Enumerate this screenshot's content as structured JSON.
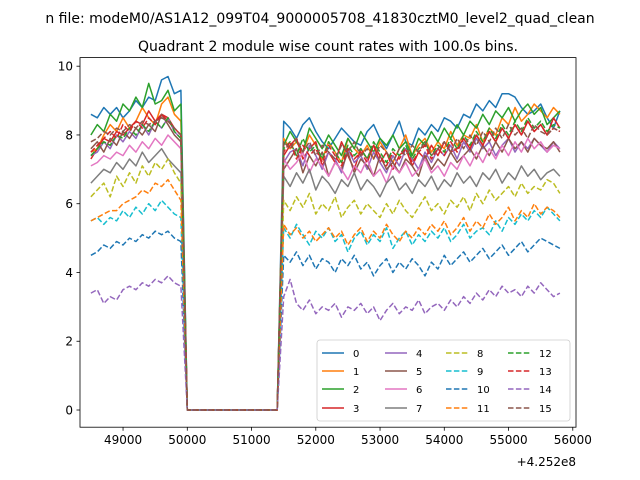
{
  "suptitle": "n file: modeM0/AS1A12_099T04_9000005708_41830cztM0_level2_quad_clean",
  "chart_data": {
    "type": "line",
    "title": "Quadrant 2 module wise count rates with 100.0s bins.",
    "xlabel": "",
    "ylabel": "",
    "offset_text": "+4.252e8",
    "xlim": [
      48330,
      56050
    ],
    "ylim": [
      -0.5,
      10.25
    ],
    "xticks": [
      49000,
      50000,
      51000,
      52000,
      53000,
      54000,
      55000,
      56000
    ],
    "xtick_labels": [
      "49000",
      "50000",
      "51000",
      "52000",
      "53000",
      "54000",
      "55000",
      "56000"
    ],
    "yticks": [
      0,
      2,
      4,
      6,
      8,
      10
    ],
    "ytick_labels": [
      "0",
      "2",
      "4",
      "6",
      "8",
      "10"
    ],
    "grid": false,
    "legend_placement": "lower-right",
    "legend_columns": 4,
    "segments": [
      {
        "start": 48500,
        "end": 49900,
        "step": 100
      },
      {
        "start": 50000,
        "end": 51400,
        "step": 100
      },
      {
        "start": 51500,
        "end": 55800,
        "step": 100
      }
    ],
    "series": [
      {
        "name": "0",
        "color": "#1f77b4",
        "dash": "solid",
        "level": 8.1,
        "seg1": [
          8.6,
          8.5,
          8.8,
          8.6,
          8.8,
          8.5,
          8.7,
          9.0,
          8.8,
          9.1,
          9.0,
          9.6,
          9.7,
          9.2,
          9.3
        ],
        "seg2": [
          8.4,
          8.2,
          7.9,
          8.3,
          8.5,
          8.1,
          7.8,
          7.6,
          7.9,
          8.2,
          8.0,
          7.8,
          7.7,
          8.1,
          8.3,
          7.9,
          7.6,
          8.0,
          8.4,
          7.8,
          7.7,
          8.2,
          8.0,
          8.3,
          8.1,
          8.5,
          8.4,
          8.2,
          8.6,
          8.5,
          8.9,
          8.7,
          9.0,
          8.8,
          9.2,
          9.2,
          9.1,
          8.8,
          8.6,
          8.7,
          8.9,
          8.5,
          8.2,
          8.7
        ]
      },
      {
        "name": "1",
        "color": "#ff7f0e",
        "dash": "solid",
        "level": 7.7,
        "seg1": [
          7.5,
          7.6,
          8.0,
          8.3,
          8.1,
          8.5,
          8.2,
          8.4,
          8.8,
          8.5,
          8.3,
          8.9,
          9.1,
          8.6,
          8.4
        ],
        "seg2": [
          7.9,
          7.6,
          7.8,
          7.5,
          8.0,
          7.7,
          7.3,
          7.8,
          7.5,
          7.2,
          7.9,
          7.6,
          7.4,
          7.7,
          7.3,
          7.8,
          7.5,
          7.2,
          7.6,
          8.0,
          7.4,
          7.7,
          7.9,
          7.5,
          7.8,
          7.6,
          8.1,
          7.7,
          8.0,
          7.9,
          8.3,
          7.8,
          8.2,
          8.0,
          8.5,
          8.3,
          8.8,
          8.4,
          8.6,
          8.9,
          8.7,
          8.5,
          8.8,
          8.6
        ]
      },
      {
        "name": "2",
        "color": "#2ca02c",
        "dash": "solid",
        "level": 7.8,
        "seg1": [
          8.0,
          8.3,
          8.1,
          8.6,
          8.4,
          8.9,
          8.7,
          9.1,
          8.8,
          9.5,
          8.9,
          9.0,
          9.3,
          8.7,
          8.9
        ],
        "seg2": [
          7.7,
          8.1,
          7.8,
          7.5,
          8.2,
          7.9,
          7.6,
          8.0,
          7.7,
          7.4,
          7.9,
          7.6,
          8.1,
          7.8,
          7.5,
          7.9,
          7.7,
          8.0,
          7.6,
          7.8,
          7.4,
          7.9,
          7.7,
          8.1,
          7.8,
          8.2,
          7.9,
          8.3,
          8.0,
          8.4,
          8.2,
          8.6,
          8.3,
          8.7,
          8.5,
          8.8,
          8.4,
          8.7,
          8.9,
          8.6,
          8.8,
          8.3,
          8.5,
          8.7
        ]
      },
      {
        "name": "3",
        "color": "#d62728",
        "dash": "solid",
        "level": 7.5,
        "seg1": [
          7.3,
          7.6,
          7.9,
          7.8,
          8.1,
          8.0,
          8.2,
          8.4,
          8.3,
          8.7,
          8.4,
          8.6,
          8.5,
          8.2,
          8.0
        ],
        "seg2": [
          7.4,
          7.7,
          7.9,
          7.3,
          7.6,
          7.8,
          7.1,
          7.5,
          7.2,
          7.8,
          7.4,
          7.0,
          7.6,
          7.3,
          7.7,
          7.2,
          7.5,
          7.0,
          7.4,
          7.6,
          7.1,
          7.5,
          7.3,
          7.7,
          7.4,
          7.8,
          7.5,
          7.6,
          7.9,
          7.6,
          8.0,
          7.7,
          8.1,
          7.8,
          8.2,
          7.9,
          8.3,
          8.0,
          8.4,
          8.1,
          8.3,
          8.0,
          8.5,
          8.2
        ]
      },
      {
        "name": "4",
        "color": "#9467bd",
        "dash": "solid",
        "level": 7.3,
        "seg1": [
          7.4,
          7.5,
          7.8,
          7.6,
          8.0,
          7.8,
          8.1,
          7.9,
          8.3,
          8.0,
          8.4,
          8.2,
          8.5,
          8.1,
          7.9
        ],
        "seg2": [
          7.2,
          7.5,
          7.6,
          7.1,
          7.7,
          7.4,
          7.0,
          7.5,
          7.3,
          6.9,
          7.6,
          7.2,
          7.4,
          7.0,
          7.5,
          7.2,
          6.9,
          7.4,
          7.1,
          7.6,
          7.3,
          7.0,
          7.5,
          7.2,
          7.6,
          7.4,
          7.7,
          7.3,
          7.8,
          7.5,
          7.9,
          7.6,
          7.8,
          7.4,
          7.7,
          7.9,
          7.5,
          7.8,
          7.6,
          7.9,
          7.7,
          7.5,
          7.8,
          7.6
        ]
      },
      {
        "name": "5",
        "color": "#8c564b",
        "dash": "solid",
        "level": 7.1,
        "seg1": [
          7.6,
          7.8,
          7.5,
          7.9,
          7.7,
          8.1,
          7.9,
          8.2,
          8.0,
          8.3,
          8.1,
          8.6,
          8.3,
          8.0,
          7.8
        ],
        "seg2": [
          7.0,
          7.3,
          7.6,
          6.9,
          7.4,
          7.1,
          7.5,
          6.8,
          7.2,
          7.0,
          7.5,
          6.9,
          7.3,
          7.1,
          6.8,
          7.4,
          7.0,
          7.2,
          6.9,
          7.3,
          7.1,
          6.8,
          7.4,
          7.0,
          7.3,
          7.1,
          7.5,
          7.2,
          7.4,
          7.6,
          7.3,
          7.7,
          7.4,
          7.8,
          7.5,
          7.9,
          7.6,
          7.8,
          7.5,
          7.9,
          7.7,
          7.6,
          7.8,
          7.5
        ]
      },
      {
        "name": "6",
        "color": "#e377c2",
        "dash": "solid",
        "level": 7.2,
        "seg1": [
          7.1,
          7.2,
          7.4,
          7.3,
          7.5,
          7.4,
          7.7,
          7.5,
          7.8,
          7.6,
          7.9,
          7.7,
          8.0,
          7.8,
          7.6
        ],
        "seg2": [
          7.3,
          7.0,
          7.2,
          7.5,
          6.9,
          7.3,
          7.1,
          6.8,
          7.2,
          7.0,
          6.7,
          7.1,
          6.9,
          7.3,
          6.8,
          7.0,
          6.6,
          7.1,
          6.9,
          7.2,
          6.8,
          7.0,
          7.3,
          6.9,
          7.1,
          6.8,
          7.2,
          7.0,
          7.4,
          7.1,
          7.5,
          7.2,
          7.6,
          7.3,
          7.7,
          7.4,
          7.8,
          7.5,
          7.9,
          7.6,
          7.8,
          7.5,
          7.7,
          7.6
        ]
      },
      {
        "name": "7",
        "color": "#7f7f7f",
        "dash": "solid",
        "level": 6.7,
        "seg1": [
          6.6,
          6.8,
          7.0,
          6.9,
          7.2,
          7.0,
          7.3,
          7.1,
          7.5,
          7.2,
          7.4,
          7.6,
          7.3,
          7.1,
          6.9
        ],
        "seg2": [
          6.8,
          6.5,
          6.9,
          6.6,
          7.0,
          6.4,
          6.8,
          6.6,
          6.3,
          6.7,
          6.5,
          6.9,
          6.4,
          6.7,
          6.5,
          6.2,
          6.6,
          6.8,
          6.4,
          6.6,
          6.3,
          6.7,
          6.5,
          6.8,
          6.4,
          6.7,
          6.5,
          6.9,
          6.6,
          6.8,
          6.5,
          6.9,
          6.7,
          7.0,
          6.6,
          6.9,
          6.7,
          7.1,
          6.8,
          7.0,
          6.7,
          6.9,
          7.0,
          6.8
        ]
      },
      {
        "name": "8",
        "color": "#bcbd22",
        "dash": "dashed",
        "level": 6.0,
        "seg1": [
          6.2,
          6.4,
          6.6,
          6.2,
          6.8,
          6.5,
          6.9,
          6.6,
          7.1,
          6.8,
          7.2,
          7.0,
          7.3,
          6.9,
          6.6
        ],
        "seg2": [
          6.1,
          5.8,
          6.2,
          5.9,
          6.3,
          5.7,
          6.0,
          5.8,
          6.2,
          5.6,
          5.9,
          6.1,
          5.7,
          6.0,
          5.8,
          5.6,
          6.0,
          5.7,
          6.1,
          5.8,
          5.6,
          5.9,
          6.2,
          5.8,
          6.0,
          5.7,
          6.1,
          5.9,
          6.2,
          5.8,
          6.3,
          6.0,
          6.4,
          6.1,
          6.3,
          6.5,
          6.2,
          6.6,
          6.3,
          6.5,
          6.4,
          6.7,
          6.6,
          6.3
        ]
      },
      {
        "name": "9",
        "color": "#17becf",
        "dash": "dashed",
        "level": 5.1,
        "seg1": [
          5.5,
          5.6,
          5.4,
          5.6,
          5.5,
          5.8,
          5.6,
          5.9,
          5.7,
          6.0,
          5.8,
          6.1,
          5.9,
          5.7,
          5.6
        ],
        "seg2": [
          5.3,
          5.0,
          5.4,
          5.1,
          4.8,
          5.2,
          5.0,
          5.3,
          4.9,
          5.1,
          4.6,
          5.0,
          5.2,
          4.8,
          5.1,
          4.9,
          5.3,
          4.7,
          5.0,
          5.2,
          4.8,
          5.1,
          4.9,
          5.2,
          5.0,
          5.3,
          4.9,
          5.1,
          5.4,
          5.0,
          5.2,
          5.3,
          5.1,
          5.5,
          5.2,
          5.6,
          5.4,
          5.7,
          5.5,
          5.8,
          5.6,
          5.9,
          5.7,
          5.5
        ]
      },
      {
        "name": "10",
        "color": "#1f77b4",
        "dash": "dashed",
        "level": 4.3,
        "seg1": [
          4.5,
          4.6,
          4.8,
          4.7,
          4.9,
          4.8,
          5.0,
          4.9,
          5.1,
          5.0,
          5.2,
          5.1,
          5.2,
          5.0,
          4.9
        ],
        "seg2": [
          4.5,
          4.3,
          4.6,
          4.2,
          4.5,
          4.1,
          4.4,
          4.3,
          4.0,
          4.4,
          4.2,
          4.5,
          4.1,
          4.3,
          3.9,
          4.2,
          4.4,
          4.0,
          4.3,
          4.1,
          4.4,
          4.2,
          3.9,
          4.3,
          4.1,
          4.5,
          4.2,
          4.4,
          4.6,
          4.3,
          4.5,
          4.7,
          4.4,
          4.6,
          4.8,
          4.5,
          4.7,
          4.9,
          4.6,
          4.8,
          5.0,
          4.9,
          4.8,
          4.7
        ]
      },
      {
        "name": "11",
        "color": "#ff7f0e",
        "dash": "dashed",
        "level": 5.2,
        "seg1": [
          5.5,
          5.6,
          5.7,
          5.8,
          5.8,
          6.0,
          6.1,
          6.2,
          6.4,
          6.3,
          6.6,
          6.5,
          6.7,
          6.4,
          6.1
        ],
        "seg2": [
          5.4,
          5.1,
          5.3,
          5.0,
          5.2,
          4.9,
          5.1,
          5.3,
          5.0,
          5.2,
          4.8,
          5.1,
          5.3,
          4.9,
          5.2,
          5.0,
          5.4,
          5.1,
          4.9,
          5.2,
          5.0,
          5.3,
          5.1,
          5.4,
          5.2,
          5.5,
          5.1,
          5.3,
          5.6,
          5.2,
          5.5,
          5.3,
          5.7,
          5.4,
          5.6,
          5.9,
          5.5,
          5.8,
          5.6,
          6.0,
          5.7,
          5.9,
          5.8,
          5.6
        ]
      },
      {
        "name": "12",
        "color": "#2ca02c",
        "dash": "dashed",
        "level": 7.6,
        "seg1": [
          7.4,
          7.6,
          7.8,
          7.7,
          8.0,
          7.9,
          8.2,
          8.0,
          8.3,
          8.1,
          8.4,
          8.2,
          8.5,
          8.1,
          7.9
        ],
        "seg2": [
          7.6,
          7.8,
          7.4,
          7.9,
          7.5,
          7.7,
          7.3,
          7.8,
          7.5,
          7.2,
          7.7,
          7.4,
          7.6,
          7.3,
          7.8,
          7.5,
          7.2,
          7.6,
          7.4,
          7.7,
          7.3,
          7.6,
          7.8,
          7.4,
          7.7,
          7.5,
          7.9,
          7.6,
          8.0,
          7.7,
          8.1,
          7.8,
          8.2,
          7.9,
          8.3,
          8.0,
          8.4,
          8.1,
          8.5,
          8.2,
          8.4,
          8.1,
          8.3,
          8.2
        ]
      },
      {
        "name": "13",
        "color": "#d62728",
        "dash": "dashed",
        "level": 7.5,
        "seg1": [
          7.5,
          7.7,
          7.9,
          8.1,
          7.9,
          8.3,
          8.1,
          8.4,
          8.2,
          8.5,
          8.3,
          8.6,
          8.4,
          8.2,
          8.0
        ],
        "seg2": [
          7.5,
          7.8,
          7.3,
          7.7,
          7.4,
          7.6,
          7.2,
          7.7,
          7.4,
          7.1,
          7.6,
          7.3,
          7.5,
          7.2,
          7.7,
          7.4,
          7.1,
          7.5,
          7.3,
          7.6,
          7.2,
          7.5,
          7.7,
          7.3,
          7.6,
          7.4,
          7.8,
          7.5,
          7.9,
          7.6,
          8.0,
          7.7,
          8.1,
          7.8,
          8.2,
          7.9,
          8.3,
          8.0,
          8.4,
          8.1,
          8.3,
          8.0,
          8.2,
          8.1
        ]
      },
      {
        "name": "14",
        "color": "#9467bd",
        "dash": "dashed",
        "level": 3.2,
        "seg1": [
          3.4,
          3.5,
          3.1,
          3.3,
          3.2,
          3.5,
          3.6,
          3.5,
          3.7,
          3.6,
          3.8,
          3.7,
          3.9,
          3.7,
          3.6
        ],
        "seg2": [
          3.3,
          3.8,
          3.1,
          2.9,
          3.2,
          2.8,
          3.0,
          2.9,
          3.1,
          2.7,
          3.0,
          2.9,
          3.1,
          2.8,
          3.0,
          2.6,
          2.9,
          3.1,
          2.8,
          3.0,
          2.9,
          3.2,
          2.8,
          3.0,
          3.1,
          2.9,
          3.2,
          3.0,
          3.3,
          3.1,
          3.4,
          3.2,
          3.5,
          3.3,
          3.6,
          3.4,
          3.5,
          3.3,
          3.6,
          3.4,
          3.7,
          3.5,
          3.3,
          3.4
        ]
      },
      {
        "name": "15",
        "color": "#8c564b",
        "dash": "dashed",
        "level": 7.9,
        "seg1": [
          7.8,
          7.9,
          8.1,
          8.0,
          8.2,
          8.1,
          8.3,
          8.2,
          8.4,
          8.3,
          8.4,
          8.5,
          8.4,
          8.2,
          8.0
        ],
        "seg2": [
          7.8,
          7.6,
          7.9,
          7.5,
          7.8,
          7.4,
          7.7,
          7.5,
          7.3,
          7.7,
          7.5,
          7.8,
          7.4,
          7.6,
          7.3,
          7.7,
          7.5,
          7.2,
          7.6,
          7.4,
          7.7,
          7.5,
          7.8,
          7.4,
          7.6,
          7.8,
          7.5,
          7.9,
          7.6,
          8.0,
          7.7,
          8.1,
          7.8,
          8.2,
          7.9,
          8.3,
          8.0,
          8.2,
          7.9,
          8.3,
          8.1,
          8.0,
          8.2,
          8.1
        ]
      }
    ]
  }
}
